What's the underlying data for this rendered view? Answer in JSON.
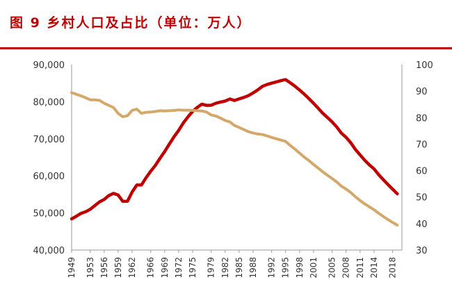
{
  "title": "图 9  乡村人口及占比（单位：万人）",
  "colors": {
    "title": "#c00000",
    "rule": "#c00000",
    "rural_population": "#c00000",
    "rural_share": "#d4a86a"
  },
  "chart_data": {
    "type": "line",
    "title": "图 9  乡村人口及占比（单位：万人）",
    "xlabel": "",
    "ylabel": "",
    "y2label": "",
    "legend": "none",
    "grid": false,
    "x_tick_labels": [
      "1949",
      "1953",
      "1956",
      "1959",
      "1962",
      "1966",
      "1969",
      "1972",
      "1975",
      "1979",
      "1982",
      "1985",
      "1988",
      "1992",
      "1995",
      "1998",
      "2001",
      "2005",
      "2008",
      "2011",
      "2014",
      "2018"
    ],
    "y_tick_labels": [
      "40,000",
      "50,000",
      "60,000",
      "70,000",
      "80,000",
      "90,000"
    ],
    "y2_tick_labels": [
      "30",
      "40",
      "50",
      "60",
      "70",
      "80",
      "90",
      "100"
    ],
    "ylim": [
      40000,
      90000
    ],
    "y2lim": [
      30,
      100
    ],
    "xlim": [
      1949,
      2020
    ],
    "series": [
      {
        "axis": "left",
        "color": "#c00000",
        "points": [
          [
            1949,
            48402
          ],
          [
            1950,
            49106
          ],
          [
            1951,
            49890
          ],
          [
            1952,
            50319
          ],
          [
            1953,
            51000
          ],
          [
            1954,
            52000
          ],
          [
            1955,
            53000
          ],
          [
            1956,
            53643
          ],
          [
            1957,
            54704
          ],
          [
            1958,
            55273
          ],
          [
            1959,
            54836
          ],
          [
            1960,
            53134
          ],
          [
            1961,
            53152
          ],
          [
            1962,
            55636
          ],
          [
            1963,
            57526
          ],
          [
            1964,
            57549
          ],
          [
            1965,
            59493
          ],
          [
            1966,
            61229
          ],
          [
            1967,
            62820
          ],
          [
            1968,
            64745
          ],
          [
            1969,
            66554
          ],
          [
            1970,
            68568
          ],
          [
            1971,
            70518
          ],
          [
            1972,
            72242
          ],
          [
            1973,
            74264
          ],
          [
            1974,
            75913
          ],
          [
            1975,
            77365
          ],
          [
            1976,
            78448
          ],
          [
            1977,
            79339
          ],
          [
            1978,
            79014
          ],
          [
            1979,
            79047
          ],
          [
            1980,
            79565
          ],
          [
            1981,
            79901
          ],
          [
            1982,
            80174
          ],
          [
            1983,
            80734
          ],
          [
            1984,
            80340
          ],
          [
            1985,
            80757
          ],
          [
            1986,
            81141
          ],
          [
            1987,
            81626
          ],
          [
            1988,
            82365
          ],
          [
            1989,
            83164
          ],
          [
            1990,
            84138
          ],
          [
            1991,
            84620
          ],
          [
            1992,
            84996
          ],
          [
            1993,
            85344
          ],
          [
            1994,
            85681
          ],
          [
            1995,
            85947
          ],
          [
            1996,
            85085
          ],
          [
            1997,
            84177
          ],
          [
            1998,
            83153
          ],
          [
            1999,
            82038
          ],
          [
            2000,
            80837
          ],
          [
            2001,
            79563
          ],
          [
            2002,
            78241
          ],
          [
            2003,
            76851
          ],
          [
            2004,
            75705
          ],
          [
            2005,
            74544
          ],
          [
            2006,
            73160
          ],
          [
            2007,
            71496
          ],
          [
            2008,
            70399
          ],
          [
            2009,
            68938
          ],
          [
            2010,
            67113
          ],
          [
            2011,
            65656
          ],
          [
            2012,
            64222
          ],
          [
            2013,
            62961
          ],
          [
            2014,
            61866
          ],
          [
            2015,
            60346
          ],
          [
            2016,
            58973
          ],
          [
            2017,
            57661
          ],
          [
            2018,
            56401
          ],
          [
            2019,
            55162
          ]
        ]
      },
      {
        "axis": "right",
        "color": "#d4a86a",
        "points": [
          [
            1949,
            89.4
          ],
          [
            1950,
            88.8
          ],
          [
            1951,
            88.2
          ],
          [
            1952,
            87.5
          ],
          [
            1953,
            86.7
          ],
          [
            1954,
            86.7
          ],
          [
            1955,
            86.5
          ],
          [
            1956,
            85.4
          ],
          [
            1957,
            84.6
          ],
          [
            1958,
            83.8
          ],
          [
            1959,
            81.6
          ],
          [
            1960,
            80.3
          ],
          [
            1961,
            80.7
          ],
          [
            1962,
            82.7
          ],
          [
            1963,
            83.2
          ],
          [
            1964,
            81.6
          ],
          [
            1965,
            82.0
          ],
          [
            1966,
            82.1
          ],
          [
            1967,
            82.3
          ],
          [
            1968,
            82.6
          ],
          [
            1969,
            82.5
          ],
          [
            1970,
            82.6
          ],
          [
            1971,
            82.7
          ],
          [
            1972,
            82.9
          ],
          [
            1973,
            82.8
          ],
          [
            1974,
            82.8
          ],
          [
            1975,
            82.7
          ],
          [
            1976,
            82.6
          ],
          [
            1977,
            82.5
          ],
          [
            1978,
            82.1
          ],
          [
            1979,
            81.0
          ],
          [
            1980,
            80.6
          ],
          [
            1981,
            79.8
          ],
          [
            1982,
            78.9
          ],
          [
            1983,
            78.4
          ],
          [
            1984,
            77.0
          ],
          [
            1985,
            76.3
          ],
          [
            1986,
            75.5
          ],
          [
            1987,
            74.7
          ],
          [
            1988,
            74.2
          ],
          [
            1989,
            73.8
          ],
          [
            1990,
            73.6
          ],
          [
            1991,
            73.1
          ],
          [
            1992,
            72.5
          ],
          [
            1993,
            72.0
          ],
          [
            1994,
            71.5
          ],
          [
            1995,
            71.0
          ],
          [
            1996,
            69.5
          ],
          [
            1997,
            68.1
          ],
          [
            1998,
            66.6
          ],
          [
            1999,
            65.1
          ],
          [
            2000,
            63.8
          ],
          [
            2001,
            62.3
          ],
          [
            2002,
            60.9
          ],
          [
            2003,
            59.5
          ],
          [
            2004,
            58.2
          ],
          [
            2005,
            57.0
          ],
          [
            2006,
            55.7
          ],
          [
            2007,
            54.1
          ],
          [
            2008,
            53.0
          ],
          [
            2009,
            51.7
          ],
          [
            2010,
            50.1
          ],
          [
            2011,
            48.7
          ],
          [
            2012,
            47.4
          ],
          [
            2013,
            46.3
          ],
          [
            2014,
            45.2
          ],
          [
            2015,
            43.9
          ],
          [
            2016,
            42.7
          ],
          [
            2017,
            41.5
          ],
          [
            2018,
            40.4
          ],
          [
            2019,
            39.4
          ]
        ]
      }
    ]
  }
}
